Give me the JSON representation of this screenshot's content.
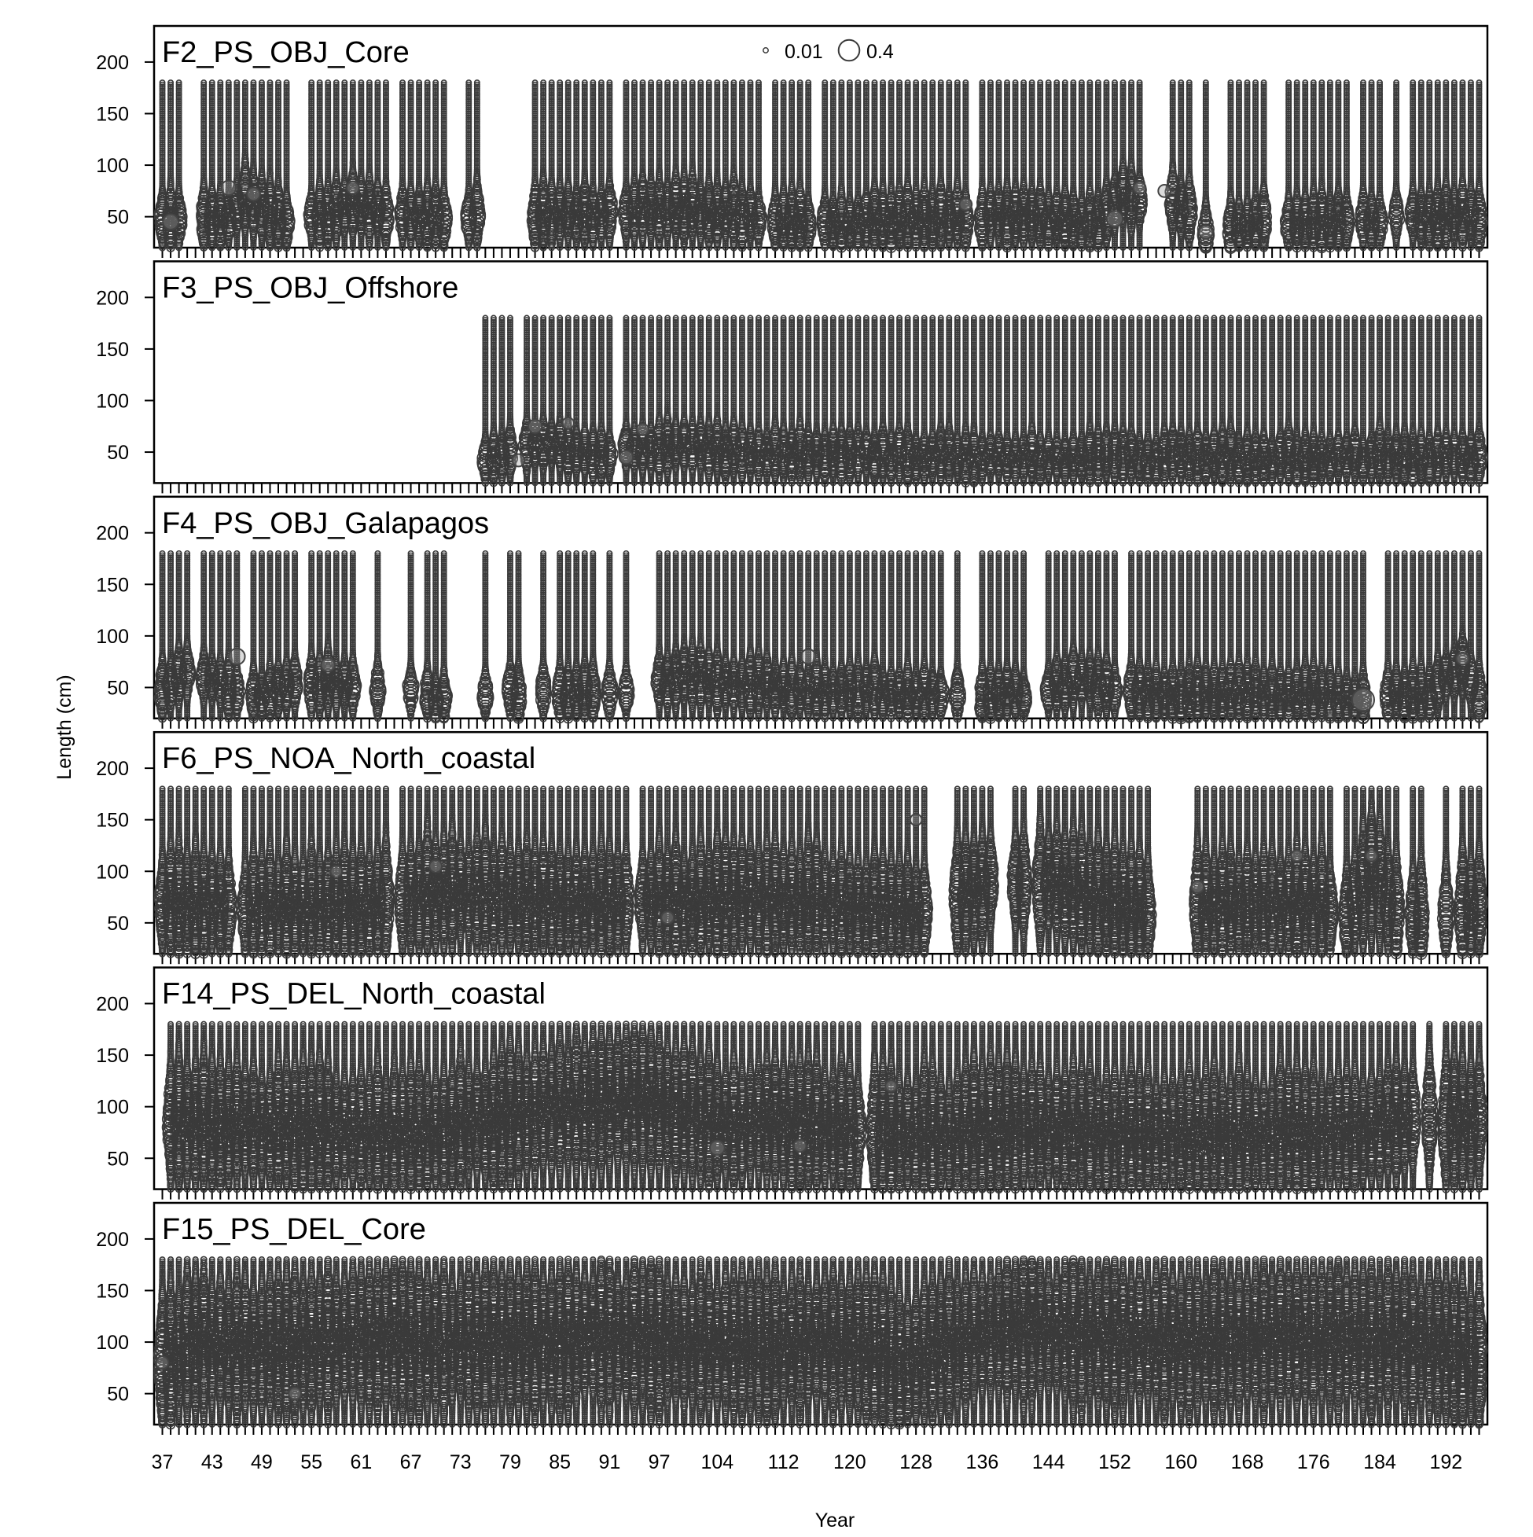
{
  "chart_data": {
    "type": "scatter",
    "subtype": "bubble-panels",
    "xlabel": "Year",
    "ylabel": "Length (cm)",
    "xlim": [
      36,
      197
    ],
    "ylim": [
      20,
      235
    ],
    "yticks": [
      50,
      100,
      150,
      200
    ],
    "xtick_labels": [
      "37",
      "43",
      "49",
      "55",
      "61",
      "67",
      "73",
      "79",
      "85",
      "91",
      "97",
      "104",
      "112",
      "120",
      "128",
      "136",
      "144",
      "152",
      "160",
      "168",
      "176",
      "184",
      "192"
    ],
    "xtick_positions": [
      37,
      43,
      49,
      55,
      61,
      67,
      73,
      79,
      85,
      91,
      97,
      104,
      112,
      120,
      128,
      136,
      144,
      152,
      160,
      168,
      176,
      184,
      192
    ],
    "minor_tick_range": [
      37,
      196
    ],
    "grid": false,
    "legend": {
      "position": "top-center",
      "entries": [
        {
          "label": "0.01",
          "value": 0.01
        },
        {
          "label": "0.4",
          "value": 0.4
        }
      ]
    },
    "colors": {
      "bubble": "#3a3a3a",
      "axis": "#000000",
      "background": "#ffffff"
    },
    "bin_range": [
      20,
      180
    ],
    "panels": [
      {
        "title": "F2_PS_OBJ_Core",
        "ranges": [
          [
            37,
            39
          ],
          [
            42,
            52
          ],
          [
            55,
            64
          ],
          [
            66,
            71
          ],
          [
            74,
            75
          ],
          [
            82,
            91
          ],
          [
            93,
            109
          ],
          [
            111,
            115
          ],
          [
            117,
            134
          ],
          [
            136,
            147
          ],
          [
            148,
            155
          ],
          [
            159,
            161
          ],
          [
            163,
            163
          ],
          [
            166,
            170
          ],
          [
            173,
            180
          ],
          [
            182,
            184
          ],
          [
            186,
            186
          ],
          [
            188,
            196
          ]
        ],
        "mean": [
          [
            37,
            47
          ],
          [
            45,
            45
          ],
          [
            47,
            70
          ],
          [
            52,
            45
          ],
          [
            55,
            50
          ],
          [
            60,
            60
          ],
          [
            66,
            50
          ],
          [
            75,
            50
          ],
          [
            82,
            50
          ],
          [
            95,
            55
          ],
          [
            100,
            60
          ],
          [
            111,
            45
          ],
          [
            125,
            45
          ],
          [
            136,
            50
          ],
          [
            150,
            45
          ],
          [
            153,
            70
          ],
          [
            160,
            60
          ],
          [
            163,
            35
          ],
          [
            170,
            45
          ],
          [
            180,
            45
          ],
          [
            188,
            50
          ],
          [
            196,
            50
          ]
        ],
        "spread": 12,
        "big": [
          [
            38,
            45,
            0.2
          ],
          [
            45,
            78,
            0.18
          ],
          [
            48,
            72,
            0.14
          ],
          [
            60,
            78,
            0.12
          ],
          [
            152,
            48,
            0.22
          ],
          [
            155,
            78,
            0.12
          ],
          [
            158,
            75,
            0.12
          ],
          [
            163,
            35,
            0.15
          ],
          [
            134,
            62,
            0.12
          ]
        ]
      },
      {
        "title": "F3_PS_OBJ_Offshore",
        "ranges": [
          [
            76,
            79
          ],
          [
            81,
            91
          ],
          [
            93,
            196
          ]
        ],
        "mean": [
          [
            76,
            45
          ],
          [
            82,
            58
          ],
          [
            85,
            55
          ],
          [
            90,
            50
          ],
          [
            100,
            55
          ],
          [
            110,
            50
          ],
          [
            130,
            45
          ],
          [
            150,
            45
          ],
          [
            170,
            45
          ],
          [
            196,
            45
          ]
        ],
        "spread": 10,
        "big": [
          [
            82,
            75,
            0.15
          ],
          [
            86,
            78,
            0.1
          ],
          [
            93,
            45,
            0.15
          ],
          [
            95,
            72,
            0.1
          ],
          [
            80,
            42,
            0.12
          ]
        ]
      },
      {
        "title": "F4_PS_OBJ_Galapagos",
        "ranges": [
          [
            37,
            40
          ],
          [
            42,
            46
          ],
          [
            48,
            53
          ],
          [
            55,
            60
          ],
          [
            63,
            63
          ],
          [
            67,
            67
          ],
          [
            69,
            71
          ],
          [
            76,
            76
          ],
          [
            79,
            80
          ],
          [
            83,
            83
          ],
          [
            85,
            89
          ],
          [
            91,
            91
          ],
          [
            93,
            93
          ],
          [
            97,
            131
          ],
          [
            133,
            133
          ],
          [
            136,
            141
          ],
          [
            144,
            152
          ],
          [
            154,
            182
          ],
          [
            185,
            196
          ]
        ],
        "mean": [
          [
            37,
            45
          ],
          [
            40,
            65
          ],
          [
            44,
            55
          ],
          [
            47,
            40
          ],
          [
            50,
            48
          ],
          [
            55,
            55
          ],
          [
            63,
            50
          ],
          [
            70,
            40
          ],
          [
            80,
            45
          ],
          [
            90,
            45
          ],
          [
            100,
            60
          ],
          [
            105,
            55
          ],
          [
            115,
            50
          ],
          [
            125,
            45
          ],
          [
            140,
            42
          ],
          [
            148,
            60
          ],
          [
            155,
            42
          ],
          [
            170,
            45
          ],
          [
            182,
            40
          ],
          [
            190,
            45
          ],
          [
            194,
            70
          ],
          [
            196,
            45
          ]
        ],
        "spread": 11,
        "big": [
          [
            46,
            80,
            0.22
          ],
          [
            115,
            80,
            0.18
          ],
          [
            182,
            38,
            0.45
          ],
          [
            194,
            78,
            0.12
          ],
          [
            57,
            72,
            0.15
          ]
        ]
      },
      {
        "title": "F6_PS_NOA_North_coastal",
        "ranges": [
          [
            37,
            45
          ],
          [
            47,
            64
          ],
          [
            66,
            93
          ],
          [
            95,
            129
          ],
          [
            133,
            137
          ],
          [
            140,
            141
          ],
          [
            143,
            156
          ],
          [
            162,
            178
          ],
          [
            180,
            186
          ],
          [
            188,
            189
          ],
          [
            192,
            192
          ],
          [
            194,
            196
          ]
        ],
        "mean": [
          [
            37,
            70
          ],
          [
            45,
            65
          ],
          [
            55,
            65
          ],
          [
            65,
            70
          ],
          [
            70,
            80
          ],
          [
            80,
            75
          ],
          [
            90,
            70
          ],
          [
            100,
            70
          ],
          [
            110,
            75
          ],
          [
            120,
            65
          ],
          [
            130,
            60
          ],
          [
            137,
            90
          ],
          [
            145,
            90
          ],
          [
            150,
            70
          ],
          [
            156,
            60
          ],
          [
            165,
            70
          ],
          [
            170,
            65
          ],
          [
            176,
            70
          ],
          [
            180,
            55
          ],
          [
            183,
            100
          ],
          [
            186,
            60
          ],
          [
            192,
            55
          ],
          [
            196,
            70
          ]
        ],
        "spread": 22,
        "big": [
          [
            58,
            100,
            0.1
          ],
          [
            70,
            105,
            0.12
          ],
          [
            98,
            55,
            0.12
          ],
          [
            128,
            150,
            0.1
          ],
          [
            162,
            85,
            0.12
          ],
          [
            174,
            115,
            0.1
          ],
          [
            183,
            115,
            0.1
          ]
        ]
      },
      {
        "title": "F14_PS_DEL_North_coastal",
        "ranges": [
          [
            38,
            121
          ],
          [
            123,
            188
          ],
          [
            190,
            190
          ],
          [
            192,
            196
          ]
        ],
        "mean": [
          [
            38,
            85
          ],
          [
            50,
            80
          ],
          [
            70,
            75
          ],
          [
            85,
            100
          ],
          [
            95,
            110
          ],
          [
            104,
            80
          ],
          [
            110,
            85
          ],
          [
            120,
            75
          ],
          [
            128,
            70
          ],
          [
            140,
            80
          ],
          [
            150,
            75
          ],
          [
            160,
            70
          ],
          [
            170,
            75
          ],
          [
            180,
            75
          ],
          [
            188,
            90
          ],
          [
            194,
            85
          ]
        ],
        "spread": 25,
        "big": [
          [
            104,
            60,
            0.18
          ],
          [
            114,
            62,
            0.12
          ],
          [
            125,
            120,
            0.1
          ]
        ]
      },
      {
        "title": "F15_PS_DEL_Core",
        "ranges": [
          [
            37,
            196
          ]
        ],
        "mean": [
          [
            37,
            75
          ],
          [
            40,
            100
          ],
          [
            50,
            95
          ],
          [
            60,
            105
          ],
          [
            70,
            100
          ],
          [
            80,
            100
          ],
          [
            90,
            105
          ],
          [
            100,
            100
          ],
          [
            110,
            95
          ],
          [
            120,
            100
          ],
          [
            127,
            75
          ],
          [
            130,
            95
          ],
          [
            140,
            115
          ],
          [
            150,
            105
          ],
          [
            160,
            100
          ],
          [
            170,
            105
          ],
          [
            180,
            105
          ],
          [
            190,
            100
          ],
          [
            196,
            85
          ]
        ],
        "spread": 28,
        "big": [
          [
            53,
            50,
            0.12
          ],
          [
            37,
            80,
            0.12
          ]
        ]
      }
    ]
  }
}
